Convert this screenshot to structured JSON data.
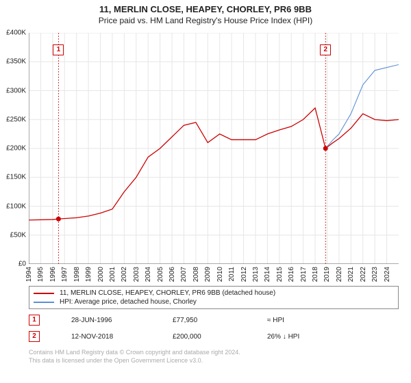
{
  "title_main": "11, MERLIN CLOSE, HEAPEY, CHORLEY, PR6 9BB",
  "title_sub": "Price paid vs. HM Land Registry's House Price Index (HPI)",
  "chart": {
    "type": "line",
    "x_years": [
      1994,
      1995,
      1996,
      1997,
      1998,
      1999,
      2000,
      2001,
      2002,
      2003,
      2004,
      2005,
      2006,
      2007,
      2008,
      2009,
      2010,
      2011,
      2012,
      2013,
      2014,
      2015,
      2016,
      2017,
      2018,
      2019,
      2020,
      2021,
      2022,
      2023,
      2024
    ],
    "xlim": [
      1994,
      2025
    ],
    "ylim": [
      0,
      400000
    ],
    "ytick_step": 50000,
    "ytick_labels": [
      "£0",
      "£50K",
      "£100K",
      "£150K",
      "£200K",
      "£250K",
      "£300K",
      "£350K",
      "£400K"
    ],
    "background_color": "#ffffff",
    "grid_color": "#e6e6e6",
    "axis_color": "#555555",
    "series": [
      {
        "name": "address",
        "color": "#cc0000",
        "width": 1.3,
        "points": [
          [
            1994,
            76000
          ],
          [
            1996,
            77000
          ],
          [
            1996.5,
            77950
          ],
          [
            1998,
            80000
          ],
          [
            1999,
            83000
          ],
          [
            2000,
            88000
          ],
          [
            2001,
            95000
          ],
          [
            2002,
            125000
          ],
          [
            2003,
            150000
          ],
          [
            2004,
            185000
          ],
          [
            2005,
            200000
          ],
          [
            2006,
            220000
          ],
          [
            2007,
            240000
          ],
          [
            2008,
            245000
          ],
          [
            2009,
            210000
          ],
          [
            2010,
            225000
          ],
          [
            2011,
            215000
          ],
          [
            2012,
            215000
          ],
          [
            2013,
            215000
          ],
          [
            2014,
            225000
          ],
          [
            2015,
            232000
          ],
          [
            2016,
            238000
          ],
          [
            2017,
            250000
          ],
          [
            2018,
            270000
          ],
          [
            2018.87,
            200000
          ],
          [
            2019.5,
            210000
          ],
          [
            2020,
            217000
          ],
          [
            2021,
            235000
          ],
          [
            2022,
            260000
          ],
          [
            2023,
            250000
          ],
          [
            2024,
            248000
          ],
          [
            2025,
            250000
          ]
        ]
      },
      {
        "name": "hpi",
        "color": "#5a8fd6",
        "width": 1.1,
        "points": [
          [
            2018.87,
            200000
          ],
          [
            2019.5,
            215000
          ],
          [
            2020,
            225000
          ],
          [
            2021,
            260000
          ],
          [
            2022,
            310000
          ],
          [
            2023,
            335000
          ],
          [
            2024,
            340000
          ],
          [
            2025,
            345000
          ]
        ]
      }
    ],
    "markers": [
      {
        "num": "1",
        "x": 1996.49,
        "y_marker": 370000,
        "y_point": 77950,
        "color": "#cc0000"
      },
      {
        "num": "2",
        "x": 2018.87,
        "y_marker": 370000,
        "y_point": 200000,
        "color": "#cc0000"
      }
    ],
    "marker_point_color": "#cc0000",
    "marker_line_color": "#cc0000"
  },
  "legend": {
    "items": [
      {
        "color": "#cc0000",
        "label": "11, MERLIN CLOSE, HEAPEY, CHORLEY, PR6 9BB (detached house)"
      },
      {
        "color": "#5a8fd6",
        "label": "HPI: Average price, detached house, Chorley"
      }
    ]
  },
  "transactions": [
    {
      "num": "1",
      "color": "#cc0000",
      "date": "28-JUN-1996",
      "price": "£77,950",
      "delta": "≈ HPI"
    },
    {
      "num": "2",
      "color": "#cc0000",
      "date": "12-NOV-2018",
      "price": "£200,000",
      "delta": "26% ↓ HPI"
    }
  ],
  "footer_line1": "Contains HM Land Registry data © Crown copyright and database right 2024.",
  "footer_line2": "This data is licensed under the Open Government Licence v3.0."
}
